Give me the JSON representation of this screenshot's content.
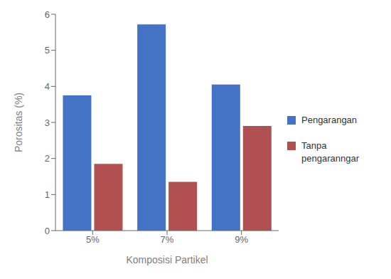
{
  "chart_data": {
    "type": "bar",
    "xlabel": "Komposisi Partikel",
    "ylabel": "Porositas (%)",
    "categories": [
      "5%",
      "7%",
      "9%"
    ],
    "series": [
      {
        "name": "Pengarangan",
        "color": "#4472C4",
        "values": [
          3.75,
          5.72,
          4.05
        ]
      },
      {
        "name": "Tanpa\npengaranngar",
        "color": "#B05050",
        "values": [
          1.85,
          1.35,
          2.9
        ]
      }
    ],
    "ylim": [
      0,
      6
    ],
    "yticks": [
      0,
      1,
      2,
      3,
      4,
      5,
      6
    ],
    "grid": false,
    "legend": "right"
  }
}
